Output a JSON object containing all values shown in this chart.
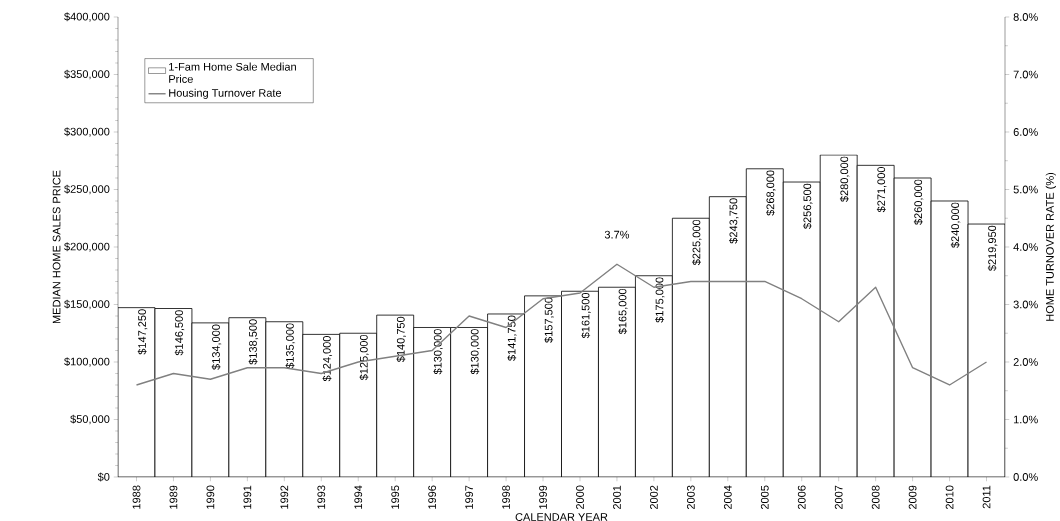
{
  "chart_data": {
    "type": "bar",
    "xlabel": "CALENDAR YEAR",
    "ylabel": "MEDIAN HOME SALES PRICE",
    "y2label": "HOME TURNOVER RATE (%)",
    "categories": [
      "1988",
      "1989",
      "1990",
      "1991",
      "1992",
      "1993",
      "1994",
      "1995",
      "1996",
      "1997",
      "1998",
      "1999",
      "2000",
      "2001",
      "2002",
      "2003",
      "2004",
      "2005",
      "2006",
      "2007",
      "2008",
      "2009",
      "2010",
      "2011"
    ],
    "series": [
      {
        "name": "1-Fam Home Sale Median Price",
        "color": "#ffffff",
        "values": [
          147250,
          146500,
          134000,
          138500,
          135000,
          124000,
          125000,
          140750,
          130000,
          130000,
          141750,
          157500,
          161500,
          165000,
          175000,
          225000,
          243750,
          268000,
          256500,
          280000,
          271000,
          260000,
          240000,
          219950
        ],
        "value_labels": [
          "$147,250",
          "$146,500",
          "$134,000",
          "$138,500",
          "$135,000",
          "$124,000",
          "$125,000",
          "$140,750",
          "$130,000",
          "$130,000",
          "$141,750",
          "$157,500",
          "$161,500",
          "$165,000",
          "$175,000",
          "$225,000",
          "$243,750",
          "$268,000",
          "$256,500",
          "$280,000",
          "$271,000",
          "$260,000",
          "$240,000",
          "$219,950"
        ]
      },
      {
        "name": "Housing Turnover Rate",
        "type": "line",
        "axis": "y2",
        "color": "#808080",
        "values": [
          1.6,
          1.8,
          1.7,
          1.9,
          1.9,
          1.8,
          2.0,
          2.1,
          2.2,
          2.8,
          2.6,
          3.1,
          3.2,
          3.7,
          3.3,
          3.4,
          3.4,
          3.4,
          3.1,
          2.7,
          3.3,
          1.9,
          1.6,
          2.0
        ]
      }
    ],
    "ylim": [
      0,
      400000
    ],
    "yticks": [
      {
        "value": 0,
        "label": "$0"
      },
      {
        "value": 50000,
        "label": "$50,000"
      },
      {
        "value": 100000,
        "label": "$100,000"
      },
      {
        "value": 150000,
        "label": "$150,000"
      },
      {
        "value": 200000,
        "label": "$200,000"
      },
      {
        "value": 250000,
        "label": "$250,000"
      },
      {
        "value": 300000,
        "label": "$300,000"
      },
      {
        "value": 350000,
        "label": "$350,000"
      },
      {
        "value": 400000,
        "label": "$400,000"
      }
    ],
    "y2lim": [
      0,
      8
    ],
    "y2ticks": [
      {
        "value": 0,
        "label": "0.0%"
      },
      {
        "value": 1,
        "label": "1.0%"
      },
      {
        "value": 2,
        "label": "2.0%"
      },
      {
        "value": 3,
        "label": "3.0%"
      },
      {
        "value": 4,
        "label": "4.0%"
      },
      {
        "value": 5,
        "label": "5.0%"
      },
      {
        "value": 6,
        "label": "6.0%"
      },
      {
        "value": 7,
        "label": "7.0%"
      },
      {
        "value": 8,
        "label": "8.0%"
      }
    ],
    "annotations": [
      "3.7%"
    ],
    "legend": "top left"
  }
}
